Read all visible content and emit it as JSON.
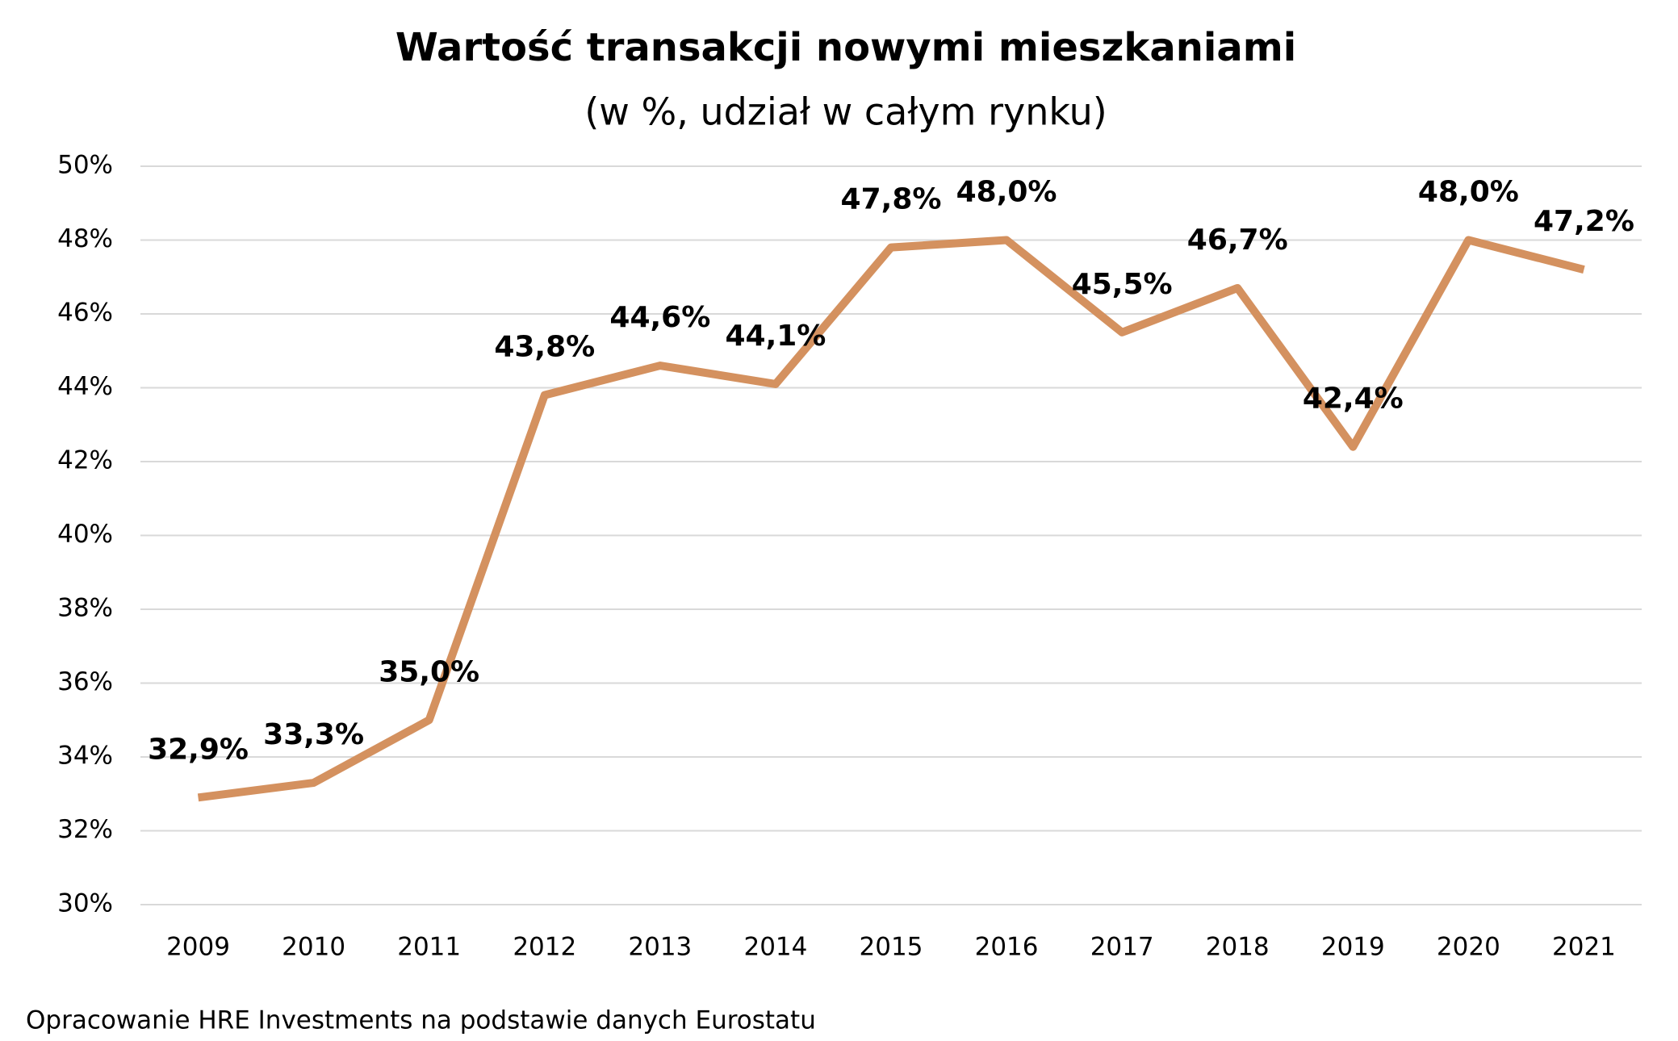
{
  "chart_data": {
    "type": "line",
    "title": "Wartość transakcji nowymi mieszkaniami",
    "subtitle": "(w %, udział w całym rynku)",
    "categories": [
      "2009",
      "2010",
      "2011",
      "2012",
      "2013",
      "2014",
      "2015",
      "2016",
      "2017",
      "2018",
      "2019",
      "2020",
      "2021"
    ],
    "series": [
      {
        "color": "#d4915f",
        "values": [
          32.9,
          33.3,
          35.0,
          43.8,
          44.6,
          44.1,
          47.8,
          48.0,
          45.5,
          46.7,
          42.4,
          48.0,
          47.2
        ],
        "value_labels": [
          "32,9%",
          "33,3%",
          "35,0%",
          "43,8%",
          "44,6%",
          "44,1%",
          "47,8%",
          "48,0%",
          "45,5%",
          "46,7%",
          "42,4%",
          "48,0%",
          "47,2%"
        ]
      }
    ],
    "ylim": [
      30,
      50
    ],
    "yticks": [
      {
        "value": 30,
        "label": "30%"
      },
      {
        "value": 32,
        "label": "32%"
      },
      {
        "value": 34,
        "label": "34%"
      },
      {
        "value": 36,
        "label": "36%"
      },
      {
        "value": 38,
        "label": "38%"
      },
      {
        "value": 40,
        "label": "40%"
      },
      {
        "value": 42,
        "label": "42%"
      },
      {
        "value": 44,
        "label": "44%"
      },
      {
        "value": 46,
        "label": "46%"
      },
      {
        "value": 48,
        "label": "48%"
      },
      {
        "value": 50,
        "label": "50%"
      }
    ],
    "grid": true,
    "source": "Opracowanie HRE Investments na podstawie danych Eurostatu"
  }
}
